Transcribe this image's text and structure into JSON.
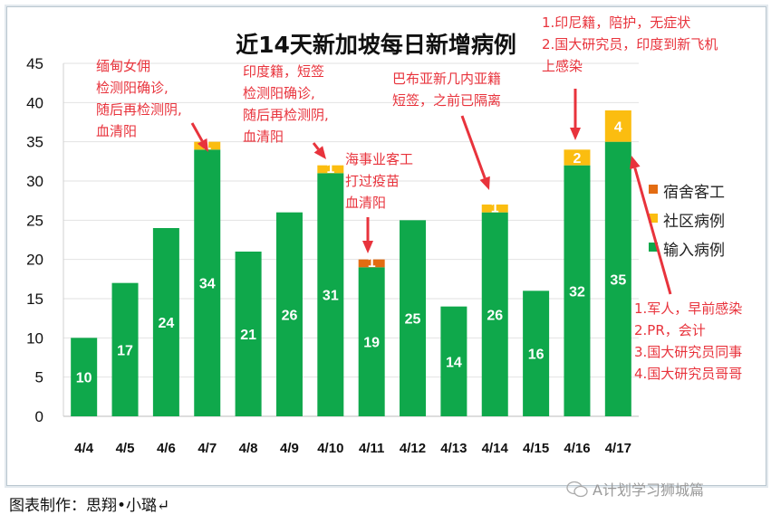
{
  "chart_data": {
    "type": "bar",
    "stacked": true,
    "title": "近14天新加坡每日新增病例",
    "categories": [
      "4/4",
      "4/5",
      "4/6",
      "4/7",
      "4/8",
      "4/9",
      "4/10",
      "4/11",
      "4/12",
      "4/13",
      "4/14",
      "4/15",
      "4/16",
      "4/17"
    ],
    "series": [
      {
        "name": "输入病例",
        "color": "#0fa84b",
        "values": [
          10,
          17,
          24,
          34,
          21,
          26,
          31,
          19,
          25,
          14,
          26,
          16,
          32,
          35
        ]
      },
      {
        "name": "社区病例",
        "color": "#fbbd10",
        "values": [
          0,
          0,
          0,
          1,
          0,
          0,
          1,
          0,
          0,
          0,
          1,
          0,
          2,
          4
        ]
      },
      {
        "name": "宿舍客工",
        "color": "#e36c12",
        "values": [
          0,
          0,
          0,
          0,
          0,
          0,
          0,
          1,
          0,
          0,
          0,
          0,
          0,
          0
        ]
      }
    ],
    "legend_order": [
      "宿舍客工",
      "社区病例",
      "输入病例"
    ],
    "legend_placement": "right",
    "ylim": [
      0,
      45
    ],
    "yticks": [
      0,
      5,
      10,
      15,
      20,
      25,
      30,
      35,
      40,
      45
    ],
    "grid": true,
    "annotations": [
      {
        "category": "4/7",
        "lines": [
          "缅甸女佣",
          "检测阳确诊,",
          "随后再检测阴,",
          "血清阳"
        ]
      },
      {
        "category": "4/10",
        "lines": [
          "印度籍，短签",
          "检测阳确诊,",
          "随后再检测阴,",
          "血清阳"
        ]
      },
      {
        "category": "4/11",
        "lines": [
          "海事业客工",
          "打过疫苗",
          "血清阳"
        ]
      },
      {
        "category": "4/14",
        "lines": [
          "巴布亚新几内亚籍",
          "短签，之前已隔离"
        ]
      },
      {
        "category": "4/16",
        "lines": [
          "1.印尼籍，陪护，无症状",
          "2.国大研究员，印度到新飞机",
          "上感染"
        ]
      },
      {
        "category": "4/17",
        "lines": [
          "1.军人，早前感染",
          "2.PR，会计",
          "3.国大研究员同事",
          "4.国大研究员哥哥"
        ]
      }
    ],
    "annotation_color": "#e8333c"
  },
  "footer": "图表制作：思翔•小璐↵",
  "watermark": "A计划学习狮城篇"
}
